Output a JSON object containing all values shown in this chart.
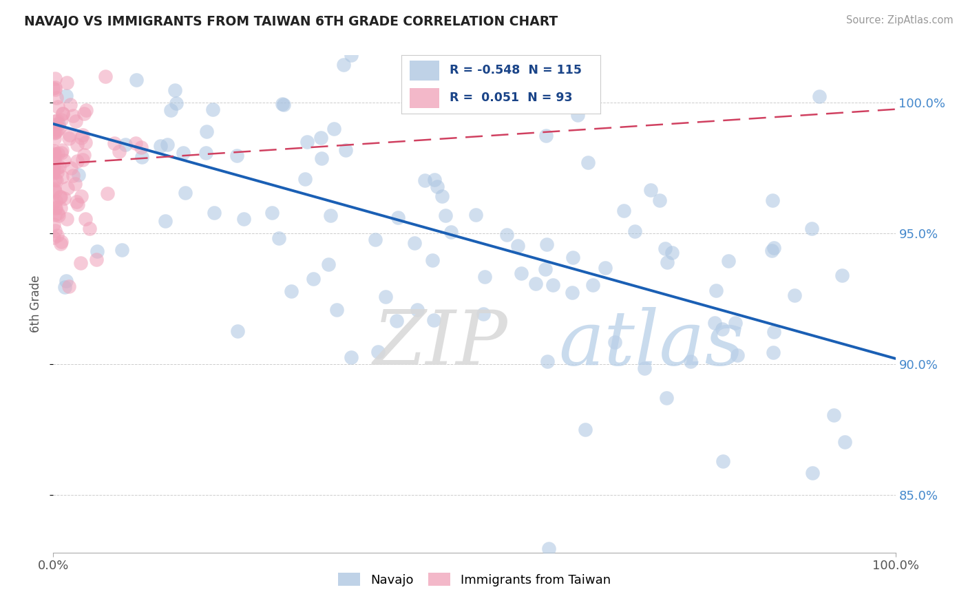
{
  "title": "NAVAJO VS IMMIGRANTS FROM TAIWAN 6TH GRADE CORRELATION CHART",
  "source": "Source: ZipAtlas.com",
  "ylabel": "6th Grade",
  "blue_R": -0.548,
  "blue_N": 115,
  "pink_R": 0.051,
  "pink_N": 93,
  "blue_color": "#aac4e0",
  "pink_color": "#f0a0b8",
  "blue_line_color": "#1a5fb4",
  "pink_line_color": "#d04060",
  "legend_blue_label": "Navajo",
  "legend_pink_label": "Immigrants from Taiwan",
  "ylim_low": 0.828,
  "ylim_high": 1.018,
  "yticks": [
    0.85,
    0.9,
    0.95,
    1.0
  ],
  "ytick_labels": [
    "85.0%",
    "90.0%",
    "95.0%",
    "100.0%"
  ],
  "seed": 7
}
